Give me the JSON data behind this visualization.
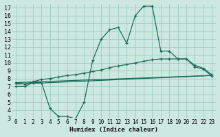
{
  "xlabel": "Humidex (Indice chaleur)",
  "ylabel": "",
  "xlim": [
    -0.5,
    23.5
  ],
  "ylim": [
    3,
    17.5
  ],
  "xticks": [
    0,
    1,
    2,
    3,
    4,
    5,
    6,
    7,
    8,
    9,
    10,
    11,
    12,
    13,
    14,
    15,
    16,
    17,
    18,
    19,
    20,
    21,
    22,
    23
  ],
  "yticks": [
    3,
    4,
    5,
    6,
    7,
    8,
    9,
    10,
    11,
    12,
    13,
    14,
    15,
    16,
    17
  ],
  "background_color": "#cce8e0",
  "grid_color": "#99ccc4",
  "line_color": "#1a6b5a",
  "curve1_x": [
    0,
    1,
    2,
    3,
    4,
    5,
    6,
    7,
    8,
    9,
    10,
    11,
    12,
    13,
    14,
    15,
    16,
    17,
    18,
    19,
    20,
    21,
    22,
    23
  ],
  "curve1_y": [
    7.0,
    7.0,
    7.5,
    7.5,
    4.2,
    3.2,
    3.2,
    2.9,
    5.0,
    10.3,
    13.0,
    14.2,
    14.5,
    12.5,
    16.0,
    17.2,
    17.2,
    11.5,
    11.5,
    10.5,
    10.5,
    9.5,
    9.2,
    8.3
  ],
  "curve2_x": [
    0,
    1,
    2,
    3,
    4,
    5,
    6,
    7,
    8,
    9,
    10,
    11,
    12,
    13,
    14,
    15,
    16,
    17,
    18,
    19,
    20,
    21,
    22,
    23
  ],
  "curve2_y": [
    7.5,
    7.3,
    7.6,
    7.9,
    8.0,
    8.2,
    8.4,
    8.5,
    8.7,
    8.9,
    9.1,
    9.4,
    9.6,
    9.8,
    10.0,
    10.2,
    10.4,
    10.5,
    10.5,
    10.5,
    10.5,
    9.7,
    9.3,
    8.5
  ],
  "curve3_x": [
    0,
    23
  ],
  "curve3_y": [
    7.5,
    8.4
  ],
  "curve4_x": [
    0,
    23
  ],
  "curve4_y": [
    7.3,
    8.4
  ]
}
